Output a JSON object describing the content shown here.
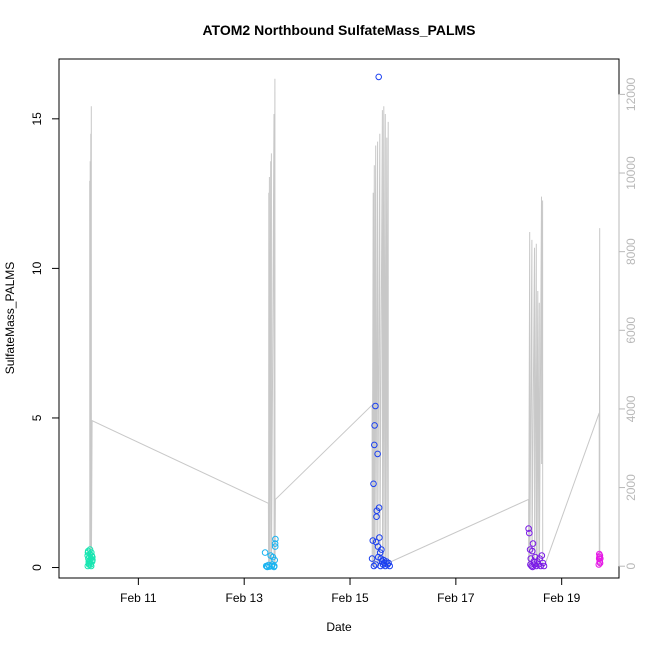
{
  "chart_data": {
    "type": "scatter",
    "title": "ATOM2 Northbound SulfateMass_PALMS",
    "xlabel": "Date",
    "ylabel": "SulfateMass_PALMS",
    "xlim": [
      "2017-02-09 12:00",
      "2017-02-20 02:00"
    ],
    "ylim": [
      -0.35,
      17.0
    ],
    "y2lim": [
      -300,
      12900
    ],
    "grid": false,
    "x_ticks": [
      {
        "date": "2017-02-11",
        "label": "Feb 11"
      },
      {
        "date": "2017-02-13",
        "label": "Feb 13"
      },
      {
        "date": "2017-02-15",
        "label": "Feb 15"
      },
      {
        "date": "2017-02-17",
        "label": "Feb 17"
      },
      {
        "date": "2017-02-19",
        "label": "Feb 19"
      }
    ],
    "y_ticks": [
      0,
      5,
      10,
      15
    ],
    "y2_ticks": [
      0,
      2000,
      4000,
      6000,
      8000,
      10000,
      12000
    ],
    "secondary_line": {
      "color": "#c8c8c8",
      "points": [
        [
          "2017-02-10 01:55",
          9800
        ],
        [
          "2017-02-10 01:58",
          0
        ],
        [
          "2017-02-10 02:10",
          10300
        ],
        [
          "2017-02-10 02:13",
          0
        ],
        [
          "2017-02-10 02:25",
          11000
        ],
        [
          "2017-02-10 02:28",
          0
        ],
        [
          "2017-02-10 02:40",
          11700
        ],
        [
          "2017-02-10 02:43",
          0
        ],
        [
          "2017-02-10 03:00",
          3700
        ],
        [
          "2017-02-13 11:00",
          1600
        ],
        [
          "2017-02-13 11:03",
          0
        ],
        [
          "2017-02-13 11:10",
          9500
        ],
        [
          "2017-02-13 11:13",
          0
        ],
        [
          "2017-02-13 11:25",
          9900
        ],
        [
          "2017-02-13 11:28",
          0
        ],
        [
          "2017-02-13 12:00",
          10300
        ],
        [
          "2017-02-13 12:03",
          0
        ],
        [
          "2017-02-13 12:20",
          10500
        ],
        [
          "2017-02-13 12:23",
          0
        ],
        [
          "2017-02-13 13:30",
          11500
        ],
        [
          "2017-02-13 13:33",
          0
        ],
        [
          "2017-02-13 13:55",
          12400
        ],
        [
          "2017-02-13 13:58",
          0
        ],
        [
          "2017-02-13 14:10",
          1700
        ],
        [
          "2017-02-15 10:00",
          4100
        ],
        [
          "2017-02-15 10:03",
          0
        ],
        [
          "2017-02-15 10:30",
          9500
        ],
        [
          "2017-02-15 10:33",
          0
        ],
        [
          "2017-02-15 11:00",
          10200
        ],
        [
          "2017-02-15 11:03",
          0
        ],
        [
          "2017-02-15 11:40",
          10700
        ],
        [
          "2017-02-15 11:43",
          0
        ],
        [
          "2017-02-15 12:30",
          10800
        ],
        [
          "2017-02-15 12:33",
          0
        ],
        [
          "2017-02-15 13:30",
          11000
        ],
        [
          "2017-02-15 13:33",
          0
        ],
        [
          "2017-02-15 14:40",
          11600
        ],
        [
          "2017-02-15 14:43",
          0
        ],
        [
          "2017-02-15 15:20",
          11700
        ],
        [
          "2017-02-15 15:23",
          0
        ],
        [
          "2017-02-15 16:00",
          11500
        ],
        [
          "2017-02-15 16:03",
          0
        ],
        [
          "2017-02-15 16:40",
          10900
        ],
        [
          "2017-02-15 16:43",
          0
        ],
        [
          "2017-02-15 17:20",
          11300
        ],
        [
          "2017-02-15 17:23",
          0
        ],
        [
          "2017-02-15 18:00",
          100
        ],
        [
          "2017-02-18 09:00",
          1700
        ],
        [
          "2017-02-18 09:03",
          0
        ],
        [
          "2017-02-18 09:30",
          8500
        ],
        [
          "2017-02-18 09:33",
          0
        ],
        [
          "2017-02-18 10:30",
          8300
        ],
        [
          "2017-02-18 10:33",
          0
        ],
        [
          "2017-02-18 11:40",
          8100
        ],
        [
          "2017-02-18 11:43",
          0
        ],
        [
          "2017-02-18 12:30",
          8200
        ],
        [
          "2017-02-18 12:33",
          0
        ],
        [
          "2017-02-18 13:10",
          7000
        ],
        [
          "2017-02-18 13:13",
          0
        ],
        [
          "2017-02-18 13:50",
          6700
        ],
        [
          "2017-02-18 13:53",
          0
        ],
        [
          "2017-02-18 14:50",
          9400
        ],
        [
          "2017-02-18 14:53",
          2600
        ],
        [
          "2017-02-18 15:20",
          9300
        ],
        [
          "2017-02-18 15:23",
          0
        ],
        [
          "2017-02-18 16:10",
          0
        ],
        [
          "2017-02-19 17:00",
          3900
        ],
        [
          "2017-02-19 17:03",
          0
        ],
        [
          "2017-02-19 17:15",
          8600
        ],
        [
          "2017-02-19 17:18",
          0
        ]
      ]
    },
    "series": [
      {
        "color": "#19e6b2",
        "points": [
          [
            "2017-02-10 01:00",
            0.4
          ],
          [
            "2017-02-10 01:10",
            0.5
          ],
          [
            "2017-02-10 01:20",
            0.3
          ],
          [
            "2017-02-10 01:30",
            0.2
          ],
          [
            "2017-02-10 01:40",
            0.1
          ],
          [
            "2017-02-10 01:50",
            0.35
          ],
          [
            "2017-02-10 02:00",
            0.45
          ],
          [
            "2017-02-10 02:10",
            0.2
          ],
          [
            "2017-02-10 02:20",
            0.1
          ],
          [
            "2017-02-10 02:30",
            0.3
          ],
          [
            "2017-02-10 02:40",
            0.5
          ],
          [
            "2017-02-10 02:50",
            0.4
          ],
          [
            "2017-02-10 03:00",
            0.2
          ],
          [
            "2017-02-10 03:10",
            0.25
          ],
          [
            "2017-02-10 01:05",
            0.05
          ],
          [
            "2017-02-10 01:35",
            0.15
          ],
          [
            "2017-02-10 02:05",
            0.6
          ],
          [
            "2017-02-10 02:35",
            0.05
          ],
          [
            "2017-02-10 03:05",
            0.35
          ],
          [
            "2017-02-10 01:15",
            0.55
          ]
        ]
      },
      {
        "color": "#1ab3f0",
        "points": [
          [
            "2017-02-13 09:30",
            0.5
          ],
          [
            "2017-02-13 10:00",
            0.05
          ],
          [
            "2017-02-13 10:30",
            0.02
          ],
          [
            "2017-02-13 11:00",
            0.08
          ],
          [
            "2017-02-13 11:30",
            0.03
          ],
          [
            "2017-02-13 12:00",
            0.4
          ],
          [
            "2017-02-13 12:30",
            0.05
          ],
          [
            "2017-02-13 13:00",
            0.35
          ],
          [
            "2017-02-13 13:30",
            0.02
          ],
          [
            "2017-02-13 14:00",
            0.8
          ],
          [
            "2017-02-13 14:10",
            0.95
          ],
          [
            "2017-02-13 14:05",
            0.7
          ],
          [
            "2017-02-13 13:50",
            0.25
          ],
          [
            "2017-02-13 13:40",
            0.05
          ],
          [
            "2017-02-13 10:15",
            0.03
          ],
          [
            "2017-02-13 12:45",
            0.1
          ]
        ]
      },
      {
        "color": "#1a3ff0",
        "points": [
          [
            "2017-02-15 10:00",
            0.3
          ],
          [
            "2017-02-15 10:20",
            0.9
          ],
          [
            "2017-02-15 10:40",
            2.8
          ],
          [
            "2017-02-15 11:00",
            4.1
          ],
          [
            "2017-02-15 11:10",
            4.75
          ],
          [
            "2017-02-15 11:30",
            5.4
          ],
          [
            "2017-02-15 12:00",
            1.7
          ],
          [
            "2017-02-15 12:30",
            3.8
          ],
          [
            "2017-02-15 13:00",
            16.4
          ],
          [
            "2017-02-15 13:10",
            2.0
          ],
          [
            "2017-02-15 12:10",
            1.9
          ],
          [
            "2017-02-15 11:50",
            0.85
          ],
          [
            "2017-02-15 13:20",
            1.0
          ],
          [
            "2017-02-15 13:40",
            0.5
          ],
          [
            "2017-02-15 14:00",
            0.3
          ],
          [
            "2017-02-15 14:30",
            0.2
          ],
          [
            "2017-02-15 15:00",
            0.1
          ],
          [
            "2017-02-15 15:30",
            0.15
          ],
          [
            "2017-02-15 16:00",
            0.05
          ],
          [
            "2017-02-15 16:30",
            0.2
          ],
          [
            "2017-02-15 17:00",
            0.1
          ],
          [
            "2017-02-15 17:30",
            0.15
          ],
          [
            "2017-02-15 18:00",
            0.05
          ],
          [
            "2017-02-15 12:40",
            0.7
          ],
          [
            "2017-02-15 10:50",
            0.05
          ],
          [
            "2017-02-15 11:40",
            0.1
          ],
          [
            "2017-02-15 12:50",
            0.35
          ],
          [
            "2017-02-15 14:15",
            0.6
          ],
          [
            "2017-02-15 13:50",
            0.05
          ],
          [
            "2017-02-15 15:15",
            0.25
          ]
        ]
      },
      {
        "color": "#7a1ae6",
        "points": [
          [
            "2017-02-18 09:00",
            1.3
          ],
          [
            "2017-02-18 09:20",
            1.15
          ],
          [
            "2017-02-18 09:40",
            0.6
          ],
          [
            "2017-02-18 10:00",
            0.3
          ],
          [
            "2017-02-18 10:20",
            0.05
          ],
          [
            "2017-02-18 10:40",
            0.55
          ],
          [
            "2017-02-18 11:00",
            0.8
          ],
          [
            "2017-02-18 11:20",
            0.2
          ],
          [
            "2017-02-18 11:40",
            0.1
          ],
          [
            "2017-02-18 12:00",
            0.35
          ],
          [
            "2017-02-18 12:30",
            0.05
          ],
          [
            "2017-02-18 13:00",
            0.2
          ],
          [
            "2017-02-18 13:30",
            0.1
          ],
          [
            "2017-02-18 14:00",
            0.3
          ],
          [
            "2017-02-18 14:30",
            0.05
          ],
          [
            "2017-02-18 15:00",
            0.4
          ],
          [
            "2017-02-18 15:30",
            0.15
          ],
          [
            "2017-02-18 16:00",
            0.05
          ],
          [
            "2017-02-18 09:50",
            0.1
          ],
          [
            "2017-02-18 10:50",
            0.02
          ]
        ]
      },
      {
        "color": "#e619e6",
        "points": [
          [
            "2017-02-19 16:50",
            0.1
          ],
          [
            "2017-02-19 17:00",
            0.3
          ],
          [
            "2017-02-19 17:05",
            0.45
          ],
          [
            "2017-02-19 17:10",
            0.35
          ],
          [
            "2017-02-19 17:15",
            0.2
          ],
          [
            "2017-02-19 17:20",
            0.4
          ],
          [
            "2017-02-19 17:25",
            0.15
          ],
          [
            "2017-02-19 17:30",
            0.3
          ]
        ]
      }
    ]
  }
}
